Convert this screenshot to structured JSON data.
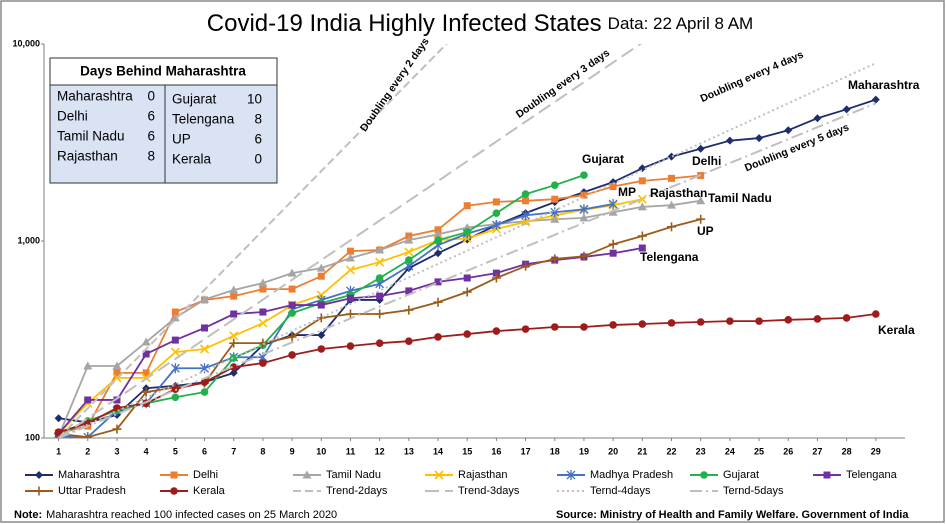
{
  "chart_data": {
    "type": "line",
    "title": "Covid-19 India Highly Infected States",
    "subtitle": "Data: 22 April 8 AM",
    "log_y": true,
    "x": [
      1,
      2,
      3,
      4,
      5,
      6,
      7,
      8,
      9,
      10,
      11,
      12,
      13,
      14,
      15,
      16,
      17,
      18,
      19,
      20,
      21,
      22,
      23,
      24,
      25,
      26,
      27,
      28,
      29
    ],
    "xlim": [
      0.5,
      30
    ],
    "xticks": [
      1,
      2,
      3,
      4,
      5,
      6,
      7,
      8,
      9,
      10,
      11,
      12,
      13,
      14,
      15,
      16,
      17,
      18,
      19,
      20,
      21,
      22,
      23,
      24,
      25,
      26,
      27,
      28,
      29
    ],
    "ylim": [
      100,
      10000
    ],
    "yticks": [
      100,
      {
        "value": 1000,
        "label": "1,000"
      },
      {
        "value": 10000,
        "label": "10,000"
      }
    ],
    "series": [
      {
        "name": "Maharashtra",
        "color": "#1f2d6b",
        "marker": "diamond",
        "values": [
          126,
          120,
          131,
          179,
          184,
          192,
          214,
          296,
          333,
          333,
          502,
          502,
          728,
          867,
          1018,
          1205,
          1385,
          1575,
          1770,
          1990,
          2340,
          2680,
          2940,
          3230,
          3330,
          3650,
          4200,
          4660,
          5220
        ]
      },
      {
        "name": "Delhi",
        "color": "#ed7d31",
        "marker": "square",
        "values": [
          106,
          115,
          214,
          214,
          436,
          502,
          525,
          570,
          570,
          663,
          888,
          900,
          1060,
          1140,
          1510,
          1580,
          1600,
          1630,
          1710,
          1890,
          2020,
          2080,
          2150,
          null,
          null,
          null,
          null,
          null,
          null
        ]
      },
      {
        "name": "Tamil Nadu",
        "color": "#a5a5a5",
        "marker": "triangle",
        "values": [
          102,
          232,
          232,
          307,
          407,
          505,
          564,
          612,
          687,
          728,
          820,
          900,
          1010,
          1080,
          1170,
          1220,
          1260,
          1290,
          1310,
          1400,
          1490,
          1520,
          1600,
          null,
          null,
          null,
          null,
          null,
          null
        ]
      },
      {
        "name": "Rajasthan",
        "color": "#ffc000",
        "marker": "x",
        "values": [
          105,
          150,
          202,
          202,
          273,
          283,
          330,
          383,
          473,
          532,
          713,
          781,
          880,
          1010,
          1030,
          1150,
          1250,
          1350,
          1440,
          1520,
          1630,
          null,
          null,
          null,
          null,
          null,
          null,
          null,
          null
        ]
      },
      {
        "name": "Madhya Pradesh",
        "label": "MP",
        "color": "#4472c4",
        "marker": "star",
        "values": [
          102,
          101,
          138,
          150,
          226,
          226,
          257,
          257,
          450,
          502,
          558,
          606,
          745,
          952,
          1090,
          1205,
          1350,
          1400,
          1450,
          1540,
          null,
          null,
          null,
          null,
          null,
          null,
          null,
          null,
          null
        ]
      },
      {
        "name": "Gujarat",
        "color": "#21b14b",
        "marker": "circle",
        "values": [
          102,
          122,
          138,
          150,
          161,
          171,
          255,
          296,
          431,
          484,
          532,
          649,
          800,
          1010,
          1110,
          1385,
          1730,
          1920,
          2160,
          null,
          null,
          null,
          null,
          null,
          null,
          null,
          null,
          null,
          null
        ]
      },
      {
        "name": "Telengana",
        "color": "#7030a0",
        "marker": "square",
        "values": [
          105,
          156,
          156,
          267,
          314,
          362,
          426,
          436,
          473,
          473,
          512,
          525,
          558,
          620,
          649,
          687,
          763,
          800,
          830,
          867,
          921,
          null,
          null,
          null,
          null,
          null,
          null,
          null,
          null
        ]
      },
      {
        "name": "Uttar Pradesh",
        "label": "UP",
        "color": "#9c5b1a",
        "marker": "plus",
        "values": [
          105,
          101,
          111,
          171,
          181,
          190,
          303,
          303,
          326,
          407,
          426,
          426,
          446,
          489,
          551,
          649,
          745,
          811,
          837,
          963,
          1060,
          1180,
          1290,
          null,
          null,
          null,
          null,
          null,
          null
        ]
      },
      {
        "name": "Kerala",
        "color": "#9e1c1c",
        "marker": "circle",
        "values": [
          107,
          119,
          142,
          150,
          177,
          192,
          229,
          240,
          264,
          283,
          293,
          303,
          310,
          326,
          337,
          349,
          357,
          366,
          366,
          375,
          379,
          384,
          388,
          392,
          392,
          398,
          402,
          407,
          426
        ]
      },
      {
        "name": "Trend-2days",
        "label": "Doubling every 2 days",
        "color": "#bfbfbf",
        "dash": "dashed",
        "x": [
          1,
          15
        ],
        "values": [
          100,
          12800
        ]
      },
      {
        "name": "Trend-3days",
        "label": "Doubling every 3 days",
        "color": "#bfbfbf",
        "dash": "long-dashed",
        "x": [
          1,
          22
        ],
        "values": [
          100,
          12800
        ]
      },
      {
        "name": "Ternd-4days",
        "label": "Doubling every 4 days",
        "color": "#bfbfbf",
        "dash": "dotted",
        "x": [
          1,
          29
        ],
        "values": [
          100,
          8000
        ]
      },
      {
        "name": "Ternd-5days",
        "label": "Doubling every 5 days",
        "color": "#bfbfbf",
        "dash": "dash-dot",
        "x": [
          1,
          29
        ],
        "values": [
          100,
          5000
        ]
      }
    ]
  },
  "days_behind": {
    "title": "Days Behind Maharashtra",
    "rows": [
      [
        "Maharashtra",
        "0"
      ],
      [
        "Delhi",
        "6"
      ],
      [
        "Tamil Nadu",
        "6"
      ],
      [
        "Rajasthan",
        "8"
      ],
      [
        "Gujarat",
        "10"
      ],
      [
        "Telengana",
        "8"
      ],
      [
        "UP",
        "6"
      ],
      [
        "Kerala",
        "0"
      ]
    ]
  },
  "note_label": "Note:",
  "note": "Maharashtra reached 100 infected cases on 25 March 2020",
  "source": "Source: Ministry of Health and Family Welfare. Government of India"
}
